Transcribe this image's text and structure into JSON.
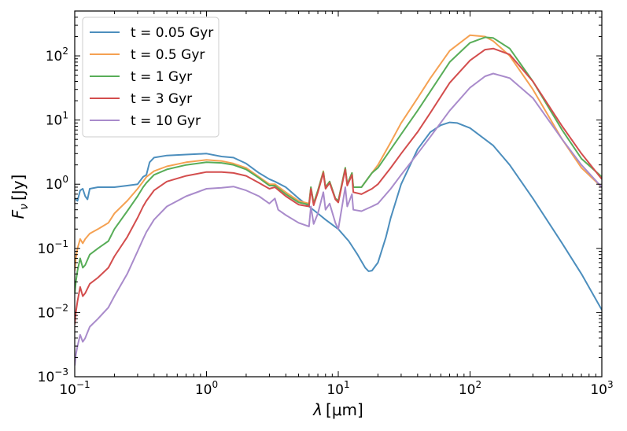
{
  "chart_data": {
    "type": "line",
    "title": "",
    "xlabel": "λ [μm]",
    "xlabel_main": "λ",
    "xlabel_unit": "[μm]",
    "ylabel": "Fν [Jy]",
    "ylabel_main": "F",
    "ylabel_sub": "ν",
    "ylabel_unit": "[Jy]",
    "xscale": "log",
    "yscale": "log",
    "xlim": [
      0.1,
      1000
    ],
    "ylim": [
      0.001,
      500
    ],
    "x_ticks": [
      {
        "value": 0.1,
        "base": "10",
        "exp": "−1"
      },
      {
        "value": 1,
        "base": "10",
        "exp": "0"
      },
      {
        "value": 10,
        "base": "10",
        "exp": "1"
      },
      {
        "value": 100,
        "base": "10",
        "exp": "2"
      },
      {
        "value": 1000,
        "base": "10",
        "exp": "3"
      }
    ],
    "y_ticks": [
      {
        "value": 0.001,
        "base": "10",
        "exp": "−3"
      },
      {
        "value": 0.01,
        "base": "10",
        "exp": "−2"
      },
      {
        "value": 0.1,
        "base": "10",
        "exp": "−1"
      },
      {
        "value": 1,
        "base": "10",
        "exp": "0"
      },
      {
        "value": 10,
        "base": "10",
        "exp": "1"
      },
      {
        "value": 100,
        "base": "10",
        "exp": "2"
      }
    ],
    "legend_position": "top-left",
    "series": [
      {
        "name": "t = 0.05 Gyr",
        "color": "#4c8ebd",
        "points": [
          [
            0.1,
            0.6
          ],
          [
            0.105,
            0.55
          ],
          [
            0.11,
            0.8
          ],
          [
            0.115,
            0.85
          ],
          [
            0.12,
            0.65
          ],
          [
            0.125,
            0.58
          ],
          [
            0.13,
            0.85
          ],
          [
            0.15,
            0.9
          ],
          [
            0.2,
            0.9
          ],
          [
            0.25,
            0.95
          ],
          [
            0.3,
            1.0
          ],
          [
            0.33,
            1.3
          ],
          [
            0.35,
            1.4
          ],
          [
            0.37,
            2.2
          ],
          [
            0.4,
            2.6
          ],
          [
            0.5,
            2.8
          ],
          [
            0.7,
            2.9
          ],
          [
            1.0,
            3.0
          ],
          [
            1.3,
            2.7
          ],
          [
            1.6,
            2.6
          ],
          [
            2.0,
            2.1
          ],
          [
            2.5,
            1.5
          ],
          [
            3.0,
            1.2
          ],
          [
            3.3,
            1.1
          ],
          [
            4.0,
            0.9
          ],
          [
            5.0,
            0.6
          ],
          [
            6.0,
            0.45
          ],
          [
            7.0,
            0.35
          ],
          [
            8.0,
            0.28
          ],
          [
            10,
            0.2
          ],
          [
            12,
            0.13
          ],
          [
            14,
            0.08
          ],
          [
            16,
            0.05
          ],
          [
            17,
            0.044
          ],
          [
            18,
            0.045
          ],
          [
            20,
            0.06
          ],
          [
            23,
            0.15
          ],
          [
            25,
            0.3
          ],
          [
            30,
            1.0
          ],
          [
            40,
            3.5
          ],
          [
            50,
            6.5
          ],
          [
            60,
            8.3
          ],
          [
            70,
            9.2
          ],
          [
            80,
            9.0
          ],
          [
            100,
            7.5
          ],
          [
            150,
            4.0
          ],
          [
            200,
            2.0
          ],
          [
            300,
            0.6
          ],
          [
            500,
            0.12
          ],
          [
            700,
            0.04
          ],
          [
            1000,
            0.011
          ]
        ]
      },
      {
        "name": "t = 0.5 Gyr",
        "color": "#f5a152",
        "points": [
          [
            0.1,
            0.045
          ],
          [
            0.102,
            0.07
          ],
          [
            0.105,
            0.1
          ],
          [
            0.11,
            0.14
          ],
          [
            0.115,
            0.12
          ],
          [
            0.12,
            0.14
          ],
          [
            0.13,
            0.17
          ],
          [
            0.15,
            0.2
          ],
          [
            0.18,
            0.25
          ],
          [
            0.2,
            0.35
          ],
          [
            0.25,
            0.55
          ],
          [
            0.3,
            0.85
          ],
          [
            0.33,
            1.1
          ],
          [
            0.35,
            1.3
          ],
          [
            0.4,
            1.6
          ],
          [
            0.5,
            1.9
          ],
          [
            0.7,
            2.2
          ],
          [
            1.0,
            2.4
          ],
          [
            1.3,
            2.3
          ],
          [
            1.6,
            2.1
          ],
          [
            2.0,
            1.8
          ],
          [
            2.5,
            1.3
          ],
          [
            3.0,
            1.0
          ],
          [
            3.3,
            1.0
          ],
          [
            4.0,
            0.75
          ],
          [
            5.0,
            0.55
          ],
          [
            6.0,
            0.5
          ],
          [
            6.2,
            0.9
          ],
          [
            6.5,
            0.5
          ],
          [
            7.0,
            0.8
          ],
          [
            7.7,
            1.6
          ],
          [
            8.0,
            0.9
          ],
          [
            8.6,
            1.1
          ],
          [
            9.5,
            0.6
          ],
          [
            10,
            0.55
          ],
          [
            11.3,
            1.8
          ],
          [
            11.7,
            1.0
          ],
          [
            12.7,
            1.5
          ],
          [
            13,
            0.9
          ],
          [
            15,
            0.9
          ],
          [
            18,
            1.5
          ],
          [
            20,
            2.0
          ],
          [
            25,
            4.5
          ],
          [
            30,
            9.0
          ],
          [
            40,
            22
          ],
          [
            50,
            45
          ],
          [
            70,
            120
          ],
          [
            100,
            210
          ],
          [
            130,
            200
          ],
          [
            150,
            170
          ],
          [
            200,
            100
          ],
          [
            300,
            30
          ],
          [
            500,
            5.0
          ],
          [
            700,
            1.8
          ],
          [
            1000,
            0.9
          ]
        ]
      },
      {
        "name": "t = 1 Gyr",
        "color": "#58ad58",
        "points": [
          [
            0.1,
            0.02
          ],
          [
            0.102,
            0.03
          ],
          [
            0.105,
            0.045
          ],
          [
            0.11,
            0.07
          ],
          [
            0.115,
            0.05
          ],
          [
            0.12,
            0.055
          ],
          [
            0.13,
            0.08
          ],
          [
            0.15,
            0.1
          ],
          [
            0.18,
            0.13
          ],
          [
            0.2,
            0.2
          ],
          [
            0.25,
            0.38
          ],
          [
            0.3,
            0.65
          ],
          [
            0.33,
            0.9
          ],
          [
            0.35,
            1.05
          ],
          [
            0.4,
            1.4
          ],
          [
            0.5,
            1.7
          ],
          [
            0.7,
            2.0
          ],
          [
            1.0,
            2.2
          ],
          [
            1.3,
            2.15
          ],
          [
            1.6,
            2.0
          ],
          [
            2.0,
            1.7
          ],
          [
            2.5,
            1.25
          ],
          [
            3.0,
            0.95
          ],
          [
            3.3,
            0.95
          ],
          [
            4.0,
            0.7
          ],
          [
            5.0,
            0.52
          ],
          [
            6.0,
            0.48
          ],
          [
            6.2,
            0.9
          ],
          [
            6.5,
            0.5
          ],
          [
            7.0,
            0.8
          ],
          [
            7.7,
            1.55
          ],
          [
            8.0,
            0.9
          ],
          [
            8.6,
            1.1
          ],
          [
            9.5,
            0.6
          ],
          [
            10,
            0.55
          ],
          [
            11.3,
            1.8
          ],
          [
            11.7,
            1.0
          ],
          [
            12.7,
            1.5
          ],
          [
            13,
            0.9
          ],
          [
            15,
            0.9
          ],
          [
            18,
            1.5
          ],
          [
            20,
            1.8
          ],
          [
            25,
            3.5
          ],
          [
            30,
            6.0
          ],
          [
            40,
            14
          ],
          [
            50,
            28
          ],
          [
            70,
            80
          ],
          [
            100,
            160
          ],
          [
            130,
            195
          ],
          [
            150,
            190
          ],
          [
            200,
            130
          ],
          [
            300,
            40
          ],
          [
            500,
            7.0
          ],
          [
            700,
            2.5
          ],
          [
            1000,
            1.3
          ]
        ]
      },
      {
        "name": "t = 3 Gyr",
        "color": "#d34d4d",
        "points": [
          [
            0.1,
            0.0065
          ],
          [
            0.102,
            0.01
          ],
          [
            0.105,
            0.015
          ],
          [
            0.11,
            0.025
          ],
          [
            0.115,
            0.018
          ],
          [
            0.12,
            0.02
          ],
          [
            0.13,
            0.028
          ],
          [
            0.15,
            0.035
          ],
          [
            0.18,
            0.05
          ],
          [
            0.2,
            0.075
          ],
          [
            0.25,
            0.15
          ],
          [
            0.3,
            0.3
          ],
          [
            0.33,
            0.45
          ],
          [
            0.35,
            0.55
          ],
          [
            0.4,
            0.8
          ],
          [
            0.5,
            1.1
          ],
          [
            0.7,
            1.35
          ],
          [
            1.0,
            1.55
          ],
          [
            1.3,
            1.55
          ],
          [
            1.6,
            1.5
          ],
          [
            2.0,
            1.35
          ],
          [
            2.5,
            1.05
          ],
          [
            3.0,
            0.85
          ],
          [
            3.3,
            0.9
          ],
          [
            4.0,
            0.65
          ],
          [
            5.0,
            0.48
          ],
          [
            6.0,
            0.45
          ],
          [
            6.2,
            0.85
          ],
          [
            6.5,
            0.47
          ],
          [
            7.0,
            0.75
          ],
          [
            7.7,
            1.5
          ],
          [
            8.0,
            0.85
          ],
          [
            8.6,
            1.05
          ],
          [
            9.5,
            0.58
          ],
          [
            10,
            0.52
          ],
          [
            11.3,
            1.7
          ],
          [
            11.7,
            0.95
          ],
          [
            12.7,
            1.4
          ],
          [
            13,
            0.75
          ],
          [
            15,
            0.7
          ],
          [
            18,
            0.85
          ],
          [
            20,
            1.0
          ],
          [
            25,
            1.8
          ],
          [
            30,
            3.0
          ],
          [
            40,
            6.5
          ],
          [
            50,
            13
          ],
          [
            70,
            38
          ],
          [
            100,
            85
          ],
          [
            130,
            125
          ],
          [
            150,
            130
          ],
          [
            200,
            105
          ],
          [
            300,
            40
          ],
          [
            500,
            8.0
          ],
          [
            700,
            3.0
          ],
          [
            1000,
            1.2
          ]
        ]
      },
      {
        "name": "t = 10 Gyr",
        "color": "#a98bcb",
        "points": [
          [
            0.1,
            0.0015
          ],
          [
            0.102,
            0.0022
          ],
          [
            0.105,
            0.003
          ],
          [
            0.11,
            0.0045
          ],
          [
            0.115,
            0.0035
          ],
          [
            0.12,
            0.004
          ],
          [
            0.13,
            0.006
          ],
          [
            0.15,
            0.008
          ],
          [
            0.18,
            0.012
          ],
          [
            0.2,
            0.018
          ],
          [
            0.25,
            0.04
          ],
          [
            0.3,
            0.09
          ],
          [
            0.33,
            0.14
          ],
          [
            0.35,
            0.18
          ],
          [
            0.4,
            0.28
          ],
          [
            0.5,
            0.45
          ],
          [
            0.7,
            0.65
          ],
          [
            1.0,
            0.85
          ],
          [
            1.3,
            0.88
          ],
          [
            1.6,
            0.92
          ],
          [
            2.0,
            0.8
          ],
          [
            2.5,
            0.65
          ],
          [
            3.0,
            0.5
          ],
          [
            3.3,
            0.6
          ],
          [
            3.5,
            0.4
          ],
          [
            4.0,
            0.33
          ],
          [
            5.0,
            0.25
          ],
          [
            6.0,
            0.22
          ],
          [
            6.2,
            0.45
          ],
          [
            6.5,
            0.24
          ],
          [
            7.0,
            0.35
          ],
          [
            7.7,
            0.75
          ],
          [
            8.0,
            0.4
          ],
          [
            8.6,
            0.5
          ],
          [
            9.5,
            0.25
          ],
          [
            10,
            0.2
          ],
          [
            11.3,
            0.9
          ],
          [
            11.7,
            0.45
          ],
          [
            12.7,
            0.7
          ],
          [
            13,
            0.4
          ],
          [
            15,
            0.38
          ],
          [
            18,
            0.45
          ],
          [
            20,
            0.5
          ],
          [
            25,
            0.85
          ],
          [
            30,
            1.4
          ],
          [
            40,
            3.0
          ],
          [
            50,
            5.5
          ],
          [
            70,
            14
          ],
          [
            100,
            32
          ],
          [
            130,
            48
          ],
          [
            150,
            53
          ],
          [
            200,
            45
          ],
          [
            300,
            22
          ],
          [
            500,
            5.0
          ],
          [
            700,
            2.0
          ],
          [
            1000,
            0.9
          ]
        ]
      }
    ]
  }
}
